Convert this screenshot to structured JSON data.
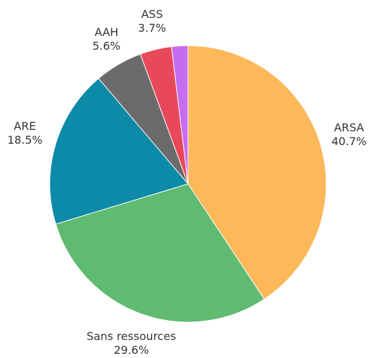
{
  "chart_data": {
    "type": "pie",
    "start": "top",
    "direction": "clockwise",
    "slices": [
      {
        "label": "ARSA",
        "value_label": "40.7%",
        "value": 40.7,
        "color": "#FDB85A"
      },
      {
        "label": "Sans ressources",
        "value_label": "29.6%",
        "value": 29.6,
        "color": "#5FBA72"
      },
      {
        "label": "ARE",
        "value_label": "18.5%",
        "value": 18.5,
        "color": "#0C8AA8"
      },
      {
        "label": "AAH",
        "value_label": "5.6%",
        "value": 5.6,
        "color": "#6B6B6B"
      },
      {
        "label": "ASS",
        "value_label": "3.7%",
        "value": 3.7,
        "color": "#E8495A"
      },
      {
        "label": "",
        "value_label": "",
        "value": 1.9,
        "color": "#C56CF0"
      }
    ]
  }
}
